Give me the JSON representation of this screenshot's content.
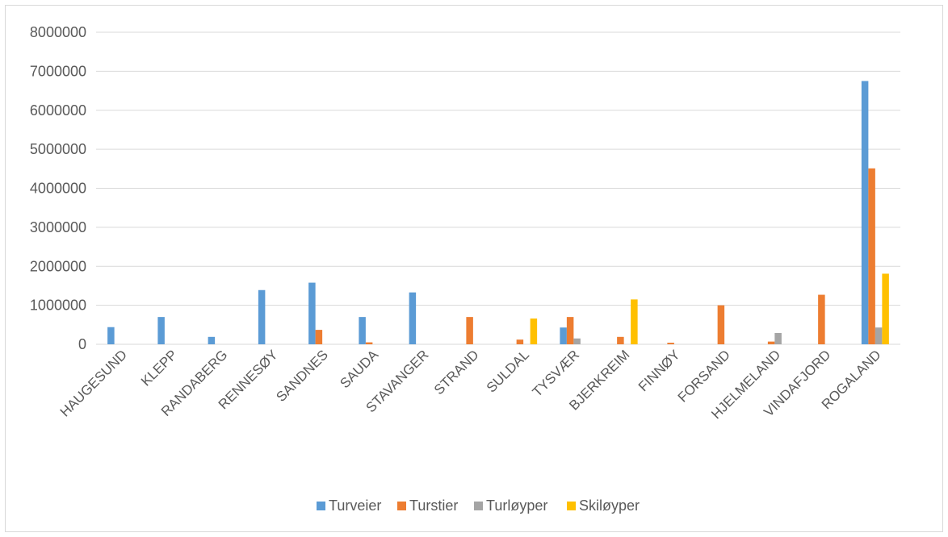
{
  "chart_data": {
    "type": "bar",
    "categories": [
      "HAUGESUND",
      "KLEPP",
      "RANDABERG",
      "RENNESØY",
      "SANDNES",
      "SAUDA",
      "STAVANGER",
      "STRAND",
      "SULDAL",
      "TYSVÆR",
      "BJERKREIM",
      "FINNØY",
      "FORSAND",
      "HJELMELAND",
      "VINDAFJORD",
      "ROGALAND"
    ],
    "series": [
      {
        "name": "Turveier",
        "color": "#5b9bd5",
        "values": [
          440000,
          700000,
          190000,
          1390000,
          1580000,
          700000,
          1330000,
          0,
          0,
          430000,
          0,
          0,
          0,
          0,
          0,
          6750000
        ]
      },
      {
        "name": "Turstier",
        "color": "#ed7d31",
        "values": [
          0,
          0,
          0,
          0,
          370000,
          50000,
          0,
          700000,
          120000,
          700000,
          190000,
          40000,
          1000000,
          70000,
          1270000,
          4510000
        ]
      },
      {
        "name": "Turløyper",
        "color": "#a5a5a5",
        "values": [
          0,
          0,
          0,
          0,
          0,
          0,
          0,
          0,
          0,
          150000,
          0,
          0,
          0,
          290000,
          0,
          430000
        ]
      },
      {
        "name": "Skiløyper",
        "color": "#ffc000",
        "values": [
          0,
          0,
          0,
          0,
          0,
          0,
          0,
          0,
          660000,
          0,
          1150000,
          0,
          0,
          0,
          0,
          1810000
        ]
      }
    ],
    "ylim": [
      0,
      8000000
    ],
    "yticks": [
      "0",
      "1000000",
      "2000000",
      "3000000",
      "4000000",
      "5000000",
      "6000000",
      "7000000",
      "8000000"
    ],
    "grid": true,
    "legend": "bottom"
  }
}
